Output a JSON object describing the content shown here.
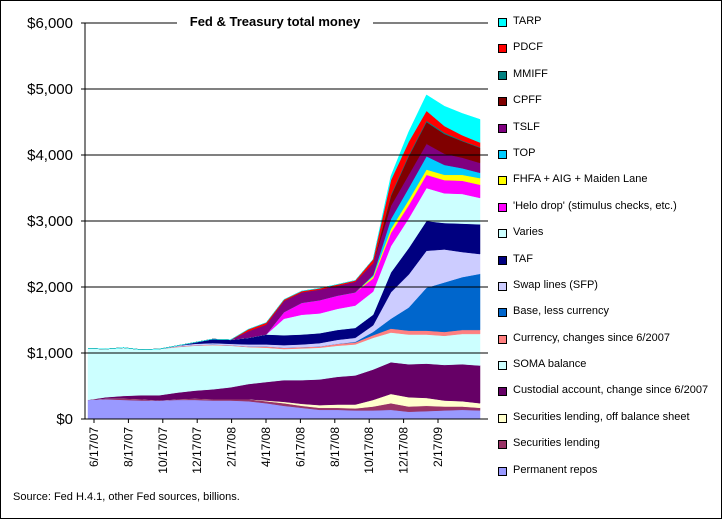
{
  "chart_data": {
    "type": "area",
    "stacked": true,
    "title": "Fed & Treasury total money",
    "xlabel": "",
    "ylabel": "",
    "ylim": [
      0,
      6000
    ],
    "y_ticks": [
      "$0",
      "$1,000",
      "$2,000",
      "$3,000",
      "$4,000",
      "$5,000",
      "$6,000"
    ],
    "y_tick_values": [
      0,
      1000,
      2000,
      3000,
      4000,
      5000,
      6000
    ],
    "x_ticks": [
      "6/17/07",
      "8/17/07",
      "10/17/07",
      "12/17/07",
      "2/17/08",
      "4/17/08",
      "6/17/08",
      "8/17/08",
      "10/17/08",
      "12/17/08",
      "2/17/09"
    ],
    "x": [
      "6/17/07",
      "7/17/07",
      "8/17/07",
      "9/17/07",
      "10/17/07",
      "11/17/07",
      "12/17/07",
      "1/17/08",
      "2/17/08",
      "3/17/08",
      "4/17/08",
      "5/17/08",
      "6/17/08",
      "7/17/08",
      "8/17/08",
      "9/10/08",
      "9/24/08",
      "10/17/08",
      "11/17/08",
      "12/17/08",
      "1/17/09",
      "2/17/09",
      "3/17/09"
    ],
    "legend_position": "right",
    "grid": true,
    "series": [
      {
        "name": "Permanent repos",
        "color": "#9999ff",
        "values": [
          290,
          300,
          290,
          280,
          280,
          290,
          290,
          280,
          280,
          270,
          240,
          200,
          170,
          140,
          140,
          130,
          130,
          140,
          110,
          120,
          130,
          140,
          130
        ]
      },
      {
        "name": "Securities lending",
        "color": "#993366",
        "values": [
          0,
          10,
          20,
          20,
          0,
          10,
          20,
          20,
          20,
          30,
          30,
          40,
          30,
          30,
          30,
          30,
          60,
          100,
          80,
          80,
          60,
          50,
          40
        ]
      },
      {
        "name": "Securities lending, off balance sheet",
        "color": "#ffffcc",
        "values": [
          0,
          0,
          0,
          0,
          0,
          0,
          0,
          0,
          0,
          0,
          10,
          20,
          30,
          40,
          50,
          60,
          100,
          140,
          140,
          120,
          90,
          80,
          70
        ]
      },
      {
        "name": "Custodial account, change since 6/2007",
        "color": "#660066",
        "values": [
          0,
          20,
          40,
          60,
          80,
          100,
          120,
          150,
          180,
          230,
          280,
          330,
          360,
          390,
          420,
          440,
          460,
          480,
          500,
          520,
          540,
          560,
          570
        ]
      },
      {
        "name": "SOMA balance",
        "color": "#ccffff",
        "values": [
          780,
          730,
          730,
          690,
          700,
          690,
          680,
          670,
          630,
          560,
          520,
          470,
          480,
          480,
          470,
          470,
          480,
          450,
          450,
          440,
          440,
          460,
          480
        ]
      },
      {
        "name": "Currency, changes since 6/2007",
        "color": "#ff8080",
        "values": [
          0,
          0,
          0,
          0,
          0,
          10,
          10,
          10,
          10,
          10,
          20,
          20,
          20,
          20,
          30,
          30,
          40,
          60,
          60,
          60,
          60,
          60,
          60
        ]
      },
      {
        "name": "Base, less currency",
        "color": "#0066cc",
        "values": [
          0,
          0,
          0,
          0,
          0,
          0,
          0,
          0,
          0,
          0,
          0,
          0,
          0,
          0,
          0,
          10,
          50,
          150,
          350,
          650,
          750,
          800,
          850
        ]
      },
      {
        "name": "Swap lines (SFP)",
        "color": "#ccccff",
        "values": [
          0,
          0,
          0,
          0,
          0,
          10,
          20,
          20,
          20,
          30,
          30,
          40,
          40,
          50,
          60,
          60,
          100,
          400,
          500,
          560,
          500,
          380,
          300
        ]
      },
      {
        "name": "TAF",
        "color": "#000080",
        "values": [
          0,
          0,
          0,
          0,
          0,
          0,
          20,
          60,
          60,
          100,
          150,
          150,
          150,
          150,
          150,
          150,
          160,
          300,
          400,
          450,
          400,
          430,
          450
        ]
      },
      {
        "name": "Varies",
        "color": "#ccffff",
        "values": [
          0,
          0,
          0,
          0,
          0,
          0,
          0,
          0,
          0,
          0,
          0,
          250,
          300,
          300,
          320,
          340,
          350,
          400,
          450,
          500,
          450,
          450,
          400
        ]
      },
      {
        "name": "'Helo drop' (stimulus checks, etc.)",
        "color": "#ff00ff",
        "values": [
          0,
          0,
          0,
          0,
          0,
          0,
          0,
          0,
          0,
          0,
          0,
          100,
          180,
          200,
          200,
          200,
          200,
          200,
          200,
          200,
          200,
          200,
          200
        ]
      },
      {
        "name": "FHFA + AIG + Maiden Lane",
        "color": "#ffff00",
        "values": [
          0,
          0,
          0,
          0,
          0,
          0,
          0,
          0,
          0,
          0,
          0,
          0,
          0,
          0,
          0,
          0,
          30,
          60,
          80,
          80,
          80,
          90,
          100
        ]
      },
      {
        "name": "TOP",
        "color": "#00ccff",
        "values": [
          0,
          0,
          0,
          0,
          0,
          0,
          0,
          0,
          0,
          0,
          0,
          0,
          0,
          0,
          0,
          0,
          20,
          150,
          180,
          200,
          150,
          100,
          80
        ]
      },
      {
        "name": "TSLF",
        "color": "#800080",
        "values": [
          0,
          0,
          0,
          0,
          0,
          0,
          0,
          0,
          0,
          100,
          150,
          170,
          160,
          160,
          150,
          160,
          180,
          200,
          200,
          190,
          170,
          160,
          150
        ]
      },
      {
        "name": "CPFF",
        "color": "#800000",
        "values": [
          0,
          0,
          0,
          0,
          0,
          0,
          0,
          0,
          0,
          0,
          0,
          0,
          0,
          0,
          0,
          0,
          0,
          150,
          280,
          330,
          300,
          250,
          230
        ]
      },
      {
        "name": "MMIFF",
        "color": "#008080",
        "values": [
          0,
          0,
          0,
          0,
          0,
          0,
          0,
          0,
          0,
          0,
          0,
          0,
          0,
          0,
          0,
          0,
          0,
          20,
          20,
          20,
          20,
          10,
          10
        ]
      },
      {
        "name": "PDCF",
        "color": "#ff0000",
        "values": [
          0,
          0,
          0,
          0,
          0,
          0,
          0,
          0,
          0,
          30,
          30,
          20,
          20,
          20,
          20,
          20,
          60,
          220,
          200,
          150,
          100,
          80,
          70
        ]
      },
      {
        "name": "TARP",
        "color": "#00ffff",
        "values": [
          0,
          0,
          0,
          0,
          0,
          0,
          0,
          0,
          0,
          0,
          0,
          0,
          0,
          0,
          0,
          0,
          0,
          60,
          150,
          240,
          300,
          330,
          350
        ]
      }
    ]
  },
  "legend_order": [
    17,
    16,
    15,
    14,
    13,
    12,
    11,
    10,
    9,
    8,
    7,
    6,
    5,
    4,
    3,
    2,
    1,
    0
  ],
  "source_note": "Source: Fed H.4.1, other Fed sources, billions."
}
